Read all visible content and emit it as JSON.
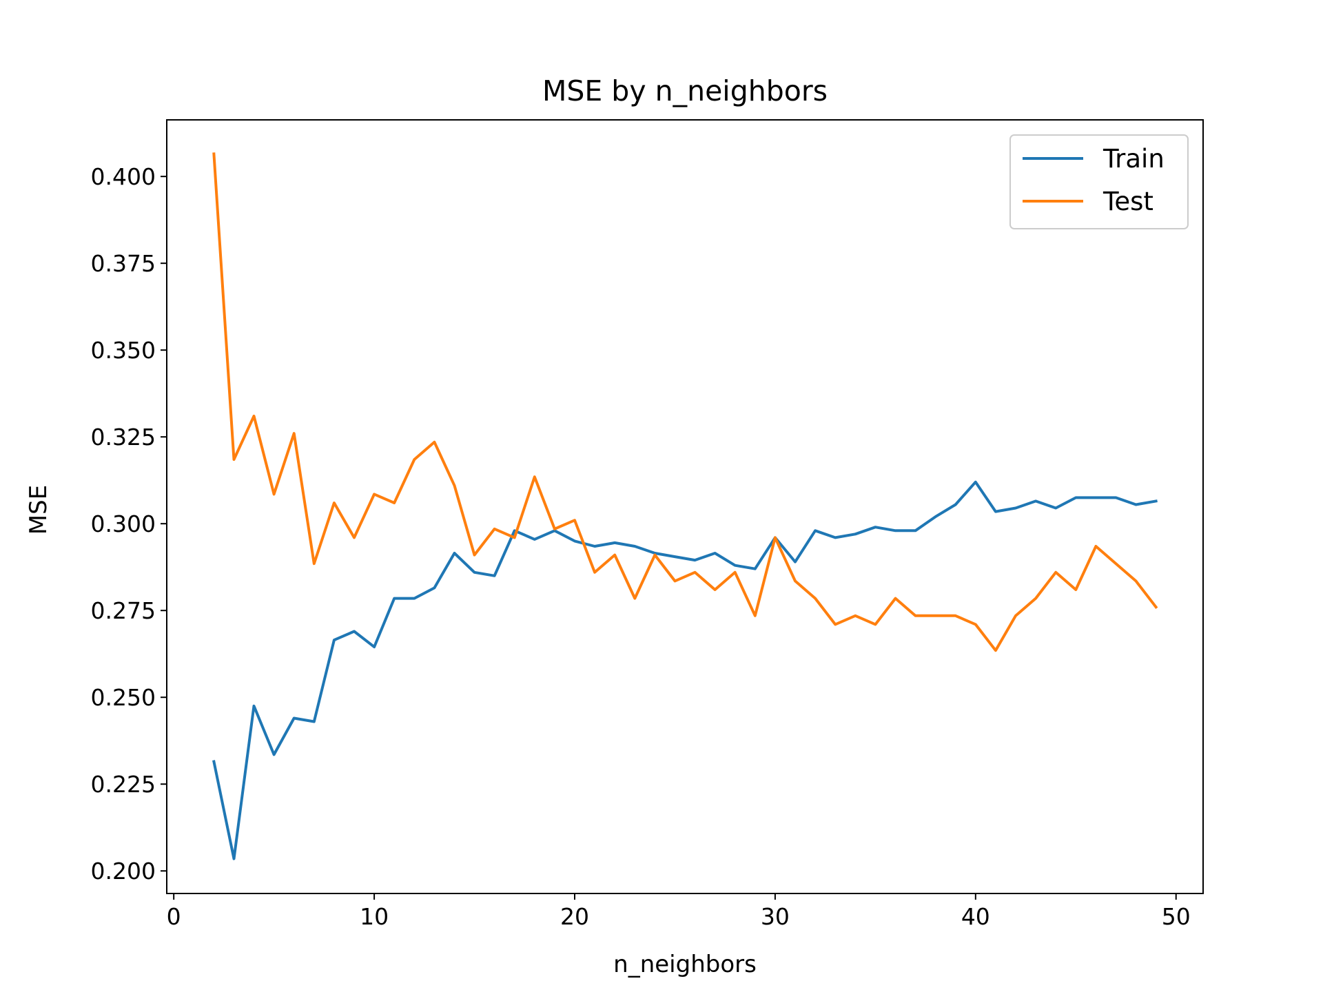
{
  "chart_data": {
    "type": "line",
    "title": "MSE by n_neighbors",
    "xlabel": "n_neighbors",
    "ylabel": "MSE",
    "xlim": [
      -0.35,
      51.35
    ],
    "ylim": [
      0.1935,
      0.4163
    ],
    "xticks": [
      0,
      10,
      20,
      30,
      40,
      50
    ],
    "yticks": [
      0.2,
      0.225,
      0.25,
      0.275,
      0.3,
      0.325,
      0.35,
      0.375,
      0.4
    ],
    "yticks_labels": [
      "0.200",
      "0.225",
      "0.250",
      "0.275",
      "0.300",
      "0.325",
      "0.350",
      "0.375",
      "0.400"
    ],
    "xticks_labels": [
      "0",
      "10",
      "20",
      "30",
      "40",
      "50"
    ],
    "grid": false,
    "legend_position": "top-right",
    "x": [
      2,
      3,
      4,
      5,
      6,
      7,
      8,
      9,
      10,
      11,
      12,
      13,
      14,
      15,
      16,
      17,
      18,
      19,
      20,
      21,
      22,
      23,
      24,
      25,
      26,
      27,
      28,
      29,
      30,
      31,
      32,
      33,
      34,
      35,
      36,
      37,
      38,
      39,
      40,
      41,
      42,
      43,
      44,
      45,
      46,
      47,
      48,
      49
    ],
    "series": [
      {
        "name": "Train",
        "color": "#1f77b4",
        "values": [
          0.2315,
          0.2035,
          0.2475,
          0.2335,
          0.244,
          0.243,
          0.2665,
          0.269,
          0.2645,
          0.2785,
          0.2785,
          0.2815,
          0.2915,
          0.286,
          0.285,
          0.298,
          0.2955,
          0.298,
          0.295,
          0.2935,
          0.2945,
          0.2935,
          0.2915,
          0.2905,
          0.2895,
          0.2915,
          0.288,
          0.287,
          0.296,
          0.289,
          0.298,
          0.296,
          0.297,
          0.299,
          0.298,
          0.298,
          0.302,
          0.3055,
          0.312,
          0.3035,
          0.3045,
          0.3065,
          0.3045,
          0.3075,
          0.3075,
          0.3075,
          0.3055,
          0.3065
        ]
      },
      {
        "name": "Test",
        "color": "#ff7f0e",
        "values": [
          0.4065,
          0.3185,
          0.331,
          0.3085,
          0.326,
          0.2885,
          0.306,
          0.296,
          0.3085,
          0.306,
          0.3185,
          0.3235,
          0.311,
          0.291,
          0.2985,
          0.296,
          0.3135,
          0.2985,
          0.301,
          0.286,
          0.291,
          0.2785,
          0.291,
          0.2835,
          0.286,
          0.281,
          0.286,
          0.2735,
          0.296,
          0.2835,
          0.2785,
          0.271,
          0.2735,
          0.271,
          0.2785,
          0.2735,
          0.2735,
          0.2735,
          0.271,
          0.2635,
          0.2735,
          0.2785,
          0.286,
          0.281,
          0.2935,
          0.2885,
          0.2835,
          0.276
        ]
      }
    ]
  }
}
